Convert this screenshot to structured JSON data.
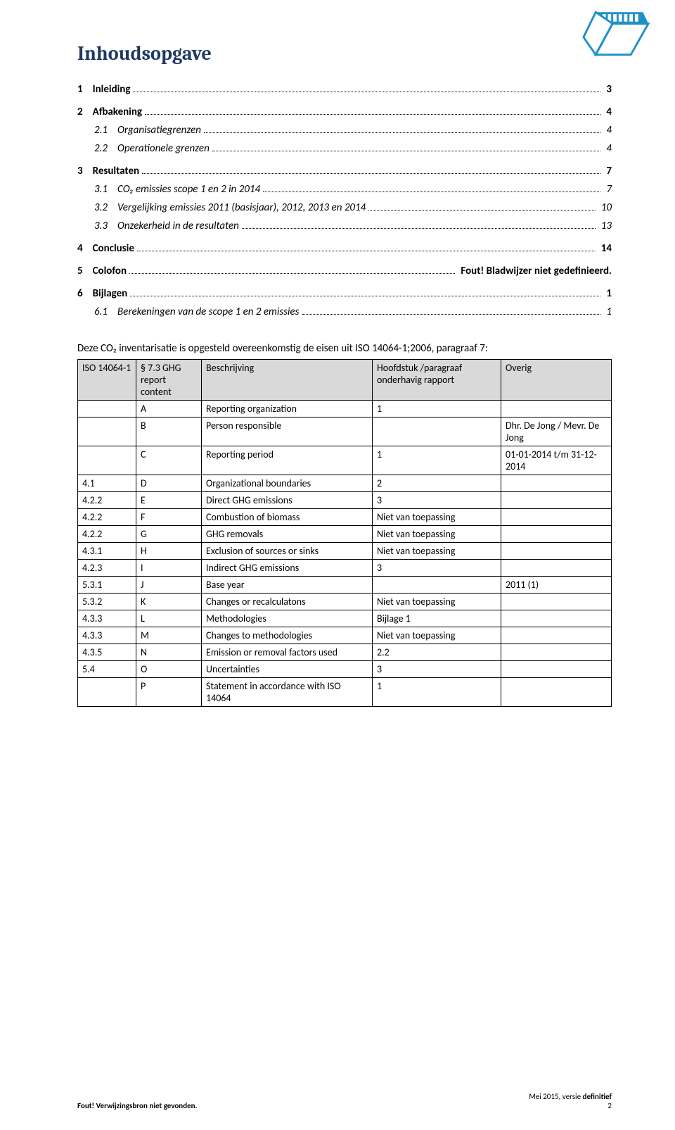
{
  "logo": {
    "primary_color": "#1e90c8",
    "inner_color": "#ffffff"
  },
  "title": "Inhoudsopgave",
  "toc": [
    {
      "level": 1,
      "num": "1",
      "text": "Inleiding",
      "page": "3"
    },
    {
      "level": 1,
      "num": "2",
      "text": "Afbakening",
      "page": "4"
    },
    {
      "level": 2,
      "num": "2.1",
      "text": "Organisatiegrenzen",
      "page": "4"
    },
    {
      "level": 2,
      "num": "2.2",
      "text": "Operationele grenzen",
      "page": "4"
    },
    {
      "level": 1,
      "num": "3",
      "text": "Resultaten",
      "page": "7"
    },
    {
      "level": 2,
      "num": "3.1",
      "text": "CO₂ emissies scope 1 en 2 in 2014",
      "page": "7"
    },
    {
      "level": 2,
      "num": "3.2",
      "text": "Vergelijking emissies 2011 (basisjaar), 2012, 2013 en 2014",
      "page": "10"
    },
    {
      "level": 2,
      "num": "3.3",
      "text": "Onzekerheid in de resultaten",
      "page": "13"
    },
    {
      "level": 1,
      "num": "4",
      "text": "Conclusie",
      "page": "14"
    },
    {
      "level": 1,
      "num": "5",
      "text": "Colofon",
      "page": "Fout! Bladwijzer niet gedefinieerd."
    },
    {
      "level": 1,
      "num": "6",
      "text": "Bijlagen",
      "page": "1"
    },
    {
      "level": 2,
      "num": "6.1",
      "text": "Berekeningen van de scope 1 en 2 emissies",
      "page": "1"
    }
  ],
  "intro_text": "Deze CO₂ inventarisatie is opgesteld overeenkomstig de eisen uit ISO 14064-1;2006, paragraaf 7:",
  "table": {
    "header_bg": "#d9d9d9",
    "columns": [
      {
        "label": "ISO 14064-1",
        "bold": true
      },
      {
        "label": "§ 7.3 GHG report content",
        "bold": true
      },
      {
        "label": "Beschrijving",
        "bold": true
      },
      {
        "label": "Hoofdstuk /paragraaf onderhavig rapport",
        "bold": true
      },
      {
        "label": "Overig",
        "bold": true
      }
    ],
    "rows": [
      [
        "",
        "A",
        "Reporting organization",
        "1",
        ""
      ],
      [
        "",
        "B",
        "Person responsible",
        "",
        "Dhr. De Jong / Mevr. De Jong"
      ],
      [
        "",
        "C",
        "Reporting period",
        "1",
        "01-01-2014 t/m 31-12-2014"
      ],
      [
        "4.1",
        "D",
        "Organizational boundaries",
        "2",
        ""
      ],
      [
        "4.2.2",
        "E",
        "Direct GHG emissions",
        "3",
        ""
      ],
      [
        "4.2.2",
        "F",
        "Combustion of biomass",
        "Niet van toepassing",
        ""
      ],
      [
        "4.2.2",
        "G",
        "GHG removals",
        "Niet van toepassing",
        ""
      ],
      [
        "4.3.1",
        "H",
        "Exclusion of sources or sinks",
        "Niet van toepassing",
        ""
      ],
      [
        "4.2.3",
        "I",
        "Indirect GHG emissions",
        "3",
        ""
      ],
      [
        "5.3.1",
        "J",
        "Base year",
        "",
        "2011 (1)"
      ],
      [
        "5.3.2",
        "K",
        "Changes or recalculatons",
        "Niet van toepassing",
        ""
      ],
      [
        "4.3.3",
        "L",
        "Methodologies",
        "Bijlage 1",
        ""
      ],
      [
        "4.3.3",
        "M",
        "Changes to methodologies",
        "Niet van toepassing",
        ""
      ],
      [
        "4.3.5",
        "N",
        "Emission or removal factors used",
        "2.2",
        ""
      ],
      [
        "5.4",
        "O",
        "Uncertainties",
        "3",
        ""
      ],
      [
        "",
        "P",
        "Statement in accordance with ISO 14064",
        "1",
        ""
      ]
    ],
    "col_widths": [
      "70px",
      "80px",
      "230px",
      "170px",
      "auto"
    ]
  },
  "footer": {
    "left": "Fout! Verwijzingsbron niet gevonden.",
    "right_line1_prefix": "Mei 2015, versie ",
    "right_line1_bold": "definitief",
    "right_line2": "2"
  }
}
